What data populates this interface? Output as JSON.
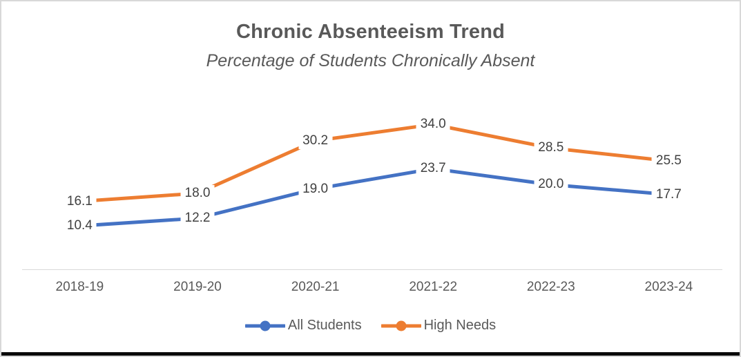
{
  "chart_data": {
    "type": "line",
    "title": "Chronic Absenteeism Trend",
    "subtitle": "Percentage of Students Chronically Absent",
    "categories": [
      "2018-19",
      "2019-20",
      "2020-21",
      "2021-22",
      "2022-23",
      "2023-24"
    ],
    "series": [
      {
        "name": "All Students",
        "color": "#4472C4",
        "values": [
          10.4,
          12.2,
          19.0,
          23.7,
          20.0,
          17.7
        ]
      },
      {
        "name": "High Needs",
        "color": "#ED7D31",
        "values": [
          16.1,
          18.0,
          30.2,
          34.0,
          28.5,
          25.5
        ]
      }
    ],
    "data_labels": true,
    "label_decimals": 1,
    "legend_position": "bottom",
    "grid": false,
    "y_axis_visible": false,
    "ylim": [
      0,
      40
    ],
    "colors": {
      "title_text": "#595959",
      "axis_text": "#595959",
      "data_label_text": "#404040",
      "axis_line": "#d9d9d9",
      "background": "#ffffff",
      "bottom_bar": "#0a0a0a"
    }
  }
}
